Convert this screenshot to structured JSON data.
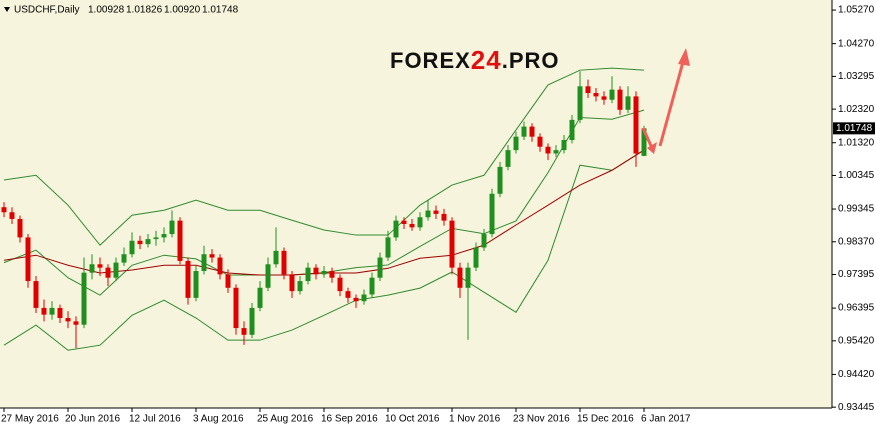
{
  "chart_data": {
    "type": "candlestick",
    "header": {
      "symbol": "USDCHF,Daily",
      "ohlc": [
        "1.00928",
        "1.01826",
        "1.00920",
        "1.01748"
      ]
    },
    "watermark": [
      "FOREX",
      "24",
      ".PRO"
    ],
    "up_color": "#1f8f1f",
    "down_color": "#e00000",
    "categories": [
      "27 May 2016",
      null,
      null,
      null,
      null,
      null,
      null,
      null,
      "20 Jun 2016",
      null,
      null,
      null,
      null,
      null,
      null,
      null,
      "12 Jul 2016",
      null,
      null,
      null,
      null,
      null,
      null,
      null,
      "3 Aug 2016",
      null,
      null,
      null,
      null,
      null,
      null,
      null,
      "25 Aug 2016",
      null,
      null,
      null,
      null,
      null,
      null,
      null,
      "16 Sep 2016",
      null,
      null,
      null,
      null,
      null,
      null,
      null,
      "10 Oct 2016",
      null,
      null,
      null,
      null,
      null,
      null,
      null,
      "1 Nov 2016",
      null,
      null,
      null,
      null,
      null,
      null,
      null,
      "23 Nov 2016",
      null,
      null,
      null,
      null,
      null,
      null,
      null,
      "15 Dec 2016",
      null,
      null,
      null,
      null,
      null,
      null,
      null,
      "6 Jan 2017"
    ],
    "open": [
      0.994,
      0.9925,
      0.9905,
      0.985,
      0.972,
      0.964,
      0.962,
      0.964,
      0.961,
      0.96,
      0.959,
      0.9745,
      0.977,
      0.976,
      0.973,
      0.9775,
      0.98,
      0.984,
      0.983,
      0.9845,
      0.985,
      0.986,
      0.99,
      0.978,
      0.967,
      0.975,
      0.98,
      0.979,
      0.974,
      0.97,
      0.958,
      0.956,
      0.964,
      0.97,
      0.977,
      0.981,
      0.974,
      0.969,
      0.972,
      0.976,
      0.974,
      0.975,
      0.973,
      0.969,
      0.967,
      0.966,
      0.968,
      0.973,
      0.979,
      0.985,
      0.99,
      0.989,
      0.988,
      0.991,
      0.993,
      0.992,
      0.99,
      0.976,
      0.97,
      0.976,
      0.982,
      0.986,
      0.998,
      1.006,
      1.011,
      1.015,
      1.018,
      1.015,
      1.012,
      1.01,
      1.011,
      1.014,
      1.02,
      1.03,
      1.028,
      1.027,
      1.026,
      1.029,
      1.023,
      1.027,
      1.00928
    ],
    "high": [
      0.9955,
      0.994,
      0.9915,
      0.986,
      0.9735,
      0.9665,
      0.966,
      0.965,
      0.963,
      0.9615,
      0.979,
      0.98,
      0.979,
      0.977,
      0.979,
      0.982,
      0.9865,
      0.9855,
      0.986,
      0.987,
      0.988,
      0.993,
      0.991,
      0.979,
      0.9765,
      0.9825,
      0.9815,
      0.98,
      0.9755,
      0.971,
      0.96,
      0.9655,
      0.972,
      0.979,
      0.988,
      0.982,
      0.975,
      0.9735,
      0.9775,
      0.977,
      0.9765,
      0.976,
      0.974,
      0.97,
      0.968,
      0.9695,
      0.9745,
      0.9805,
      0.987,
      0.9915,
      0.991,
      0.9905,
      0.9925,
      0.996,
      0.9945,
      0.9935,
      0.991,
      0.9775,
      0.9775,
      0.9835,
      0.9875,
      0.9995,
      1.0075,
      1.0125,
      1.0165,
      1.0195,
      1.019,
      1.016,
      1.013,
      1.0125,
      1.0155,
      1.0215,
      1.0345,
      1.032,
      1.0295,
      1.0285,
      1.033,
      1.03,
      1.03,
      1.0285,
      1.01826
    ],
    "low": [
      0.991,
      0.989,
      0.9835,
      0.97,
      0.9625,
      0.96,
      0.9605,
      0.9595,
      0.958,
      0.952,
      0.958,
      0.9725,
      0.9735,
      0.9705,
      0.972,
      0.9765,
      0.979,
      0.9815,
      0.982,
      0.9825,
      0.9835,
      0.985,
      0.977,
      0.965,
      0.966,
      0.974,
      0.9775,
      0.9725,
      0.9685,
      0.956,
      0.953,
      0.955,
      0.963,
      0.969,
      0.976,
      0.9725,
      0.967,
      0.968,
      0.971,
      0.9725,
      0.973,
      0.9715,
      0.9675,
      0.9655,
      0.964,
      0.965,
      0.967,
      0.972,
      0.978,
      0.984,
      0.9875,
      0.987,
      0.987,
      0.99,
      0.9905,
      0.9885,
      0.974,
      0.967,
      0.9545,
      0.975,
      0.981,
      0.985,
      0.997,
      1.005,
      1.01,
      1.014,
      1.0135,
      1.0105,
      1.008,
      1.009,
      1.01,
      1.013,
      1.019,
      1.0265,
      1.0255,
      1.0245,
      1.025,
      1.0215,
      1.022,
      1.006,
      1.0092
    ],
    "close": [
      0.9925,
      0.9905,
      0.985,
      0.972,
      0.964,
      0.962,
      0.964,
      0.961,
      0.96,
      0.959,
      0.9745,
      0.977,
      0.976,
      0.973,
      0.9775,
      0.98,
      0.984,
      0.983,
      0.9845,
      0.985,
      0.986,
      0.99,
      0.978,
      0.967,
      0.975,
      0.98,
      0.979,
      0.974,
      0.97,
      0.958,
      0.956,
      0.964,
      0.97,
      0.977,
      0.981,
      0.974,
      0.969,
      0.972,
      0.976,
      0.974,
      0.975,
      0.973,
      0.969,
      0.967,
      0.966,
      0.968,
      0.973,
      0.979,
      0.985,
      0.99,
      0.989,
      0.988,
      0.991,
      0.993,
      0.992,
      0.99,
      0.976,
      0.97,
      0.976,
      0.982,
      0.986,
      0.998,
      1.006,
      1.011,
      1.015,
      1.018,
      1.015,
      1.012,
      1.01,
      1.011,
      1.014,
      1.02,
      1.03,
      1.028,
      1.027,
      1.026,
      1.029,
      1.023,
      1.027,
      1.01,
      1.01748
    ],
    "overlays": [
      {
        "color": "#2e8b2e",
        "x": [
          0,
          4,
          8,
          12,
          16,
          20,
          24,
          28,
          32,
          36,
          40,
          44,
          48,
          52,
          56,
          60,
          64,
          68,
          72,
          76,
          80
        ],
        "values": [
          1.0021,
          1.0035,
          0.9946,
          0.9827,
          0.9916,
          0.9931,
          0.9961,
          0.9931,
          0.9931,
          0.9901,
          0.9872,
          0.9857,
          0.9857,
          0.9946,
          1.0006,
          1.0035,
          1.017,
          1.0304,
          1.0348,
          1.0354,
          1.0348
        ]
      },
      {
        "color": "#2e8b2e",
        "x": [
          0,
          4,
          8,
          12,
          16,
          20,
          24,
          28,
          32,
          36,
          40,
          44,
          48,
          52,
          56,
          60,
          64,
          68,
          72,
          76,
          80
        ],
        "values": [
          0.9775,
          0.9812,
          0.973,
          0.9678,
          0.9767,
          0.9797,
          0.9786,
          0.9738,
          0.9738,
          0.9738,
          0.9745,
          0.976,
          0.9768,
          0.9823,
          0.9877,
          0.9861,
          0.9899,
          1.0043,
          1.0207,
          1.0202,
          1.0229
        ]
      },
      {
        "color": "#2e8b2e",
        "x": [
          0,
          4,
          8,
          12,
          16,
          20,
          24,
          28,
          32,
          36,
          40,
          44,
          48,
          52,
          56,
          60,
          64,
          68,
          72,
          76,
          80
        ],
        "values": [
          0.9529,
          0.9589,
          0.9514,
          0.9529,
          0.9618,
          0.9663,
          0.961,
          0.9544,
          0.9544,
          0.9574,
          0.9618,
          0.9663,
          0.9678,
          0.9699,
          0.9747,
          0.9687,
          0.9627,
          0.9782,
          1.0065,
          1.005,
          1.011
        ]
      },
      {
        "color": "#a00000",
        "x": [
          0,
          4,
          8,
          12,
          16,
          20,
          24,
          28,
          32,
          36,
          40,
          44,
          48,
          52,
          56,
          60,
          64,
          68,
          72,
          76,
          80
        ],
        "values": [
          0.9782,
          0.9797,
          0.9767,
          0.9744,
          0.9753,
          0.9767,
          0.9767,
          0.9744,
          0.9738,
          0.9738,
          0.9744,
          0.9744,
          0.9758,
          0.9788,
          0.9797,
          0.9827,
          0.9887,
          0.9946,
          1.0006,
          1.005,
          1.011
        ]
      }
    ],
    "current_price": {
      "value": 1.01748,
      "label": "1.01748"
    },
    "ylim": [
      0.9342,
      1.0557
    ],
    "yticks": [
      {
        "value": 1.0527,
        "label": "1.05270"
      },
      {
        "value": 1.0427,
        "label": "1.04270"
      },
      {
        "value": 1.03295,
        "label": "1.03295"
      },
      {
        "value": 1.0232,
        "label": "1.02320"
      },
      {
        "value": 1.0132,
        "label": "1.01320"
      },
      {
        "value": 1.00345,
        "label": "1.00345"
      },
      {
        "value": 0.99345,
        "label": "0.99345"
      },
      {
        "value": 0.9837,
        "label": "0.98370"
      },
      {
        "value": 0.97395,
        "label": "0.97395"
      },
      {
        "value": 0.96395,
        "label": "0.96395"
      },
      {
        "value": 0.9542,
        "label": "0.95420"
      },
      {
        "value": 0.9442,
        "label": "0.94420"
      },
      {
        "value": 0.93445,
        "label": "0.93445"
      }
    ],
    "grid": false
  }
}
